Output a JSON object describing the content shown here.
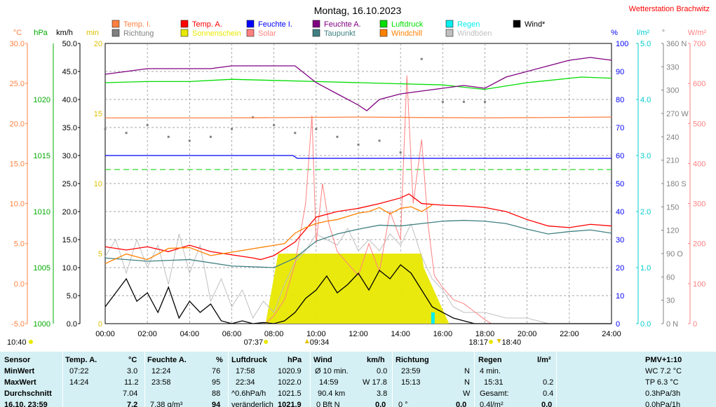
{
  "title": "Montag, 16.10.2023",
  "station": "Wetterstation Brachwitz",
  "legend": [
    {
      "label": "Temp. I.",
      "color": "#ff8040"
    },
    {
      "label": "Temp. A.",
      "color": "#ff0000"
    },
    {
      "label": "Feuchte I.",
      "color": "#0000ff"
    },
    {
      "label": "Feuchte A.",
      "color": "#800080"
    },
    {
      "label": "Luftdruck",
      "color": "#00dd00"
    },
    {
      "label": "Regen",
      "color": "#00eeee"
    },
    {
      "label": "Wind*",
      "color": "#000000"
    },
    {
      "label": "Richtung",
      "color": "#808080"
    },
    {
      "label": "Sonnenschein",
      "color": "#e8e800"
    },
    {
      "label": "Solar",
      "color": "#ff8080"
    },
    {
      "label": "Taupunkt",
      "color": "#408080"
    },
    {
      "label": "Windchill",
      "color": "#ff8000"
    },
    {
      "label": "Windböen",
      "color": "#c0c0c0"
    }
  ],
  "axes": {
    "temp": {
      "unit": "°C",
      "color": "#ff8040",
      "ticks": [
        "30.0",
        "25.0",
        "20.0",
        "15.0",
        "10.0",
        "5.0",
        "0.0",
        "-5.0"
      ]
    },
    "pressure": {
      "unit": "hPa",
      "color": "#00aa00",
      "ticks": [
        "1020",
        "1015",
        "1010",
        "1005",
        "1000"
      ]
    },
    "wind": {
      "unit": "km/h",
      "color": "#000000",
      "ticks": [
        "50.0",
        "45.0",
        "40.0",
        "35.0",
        "30.0",
        "25.0",
        "20.0",
        "15.0",
        "10.0",
        "5.0",
        "0.0"
      ]
    },
    "sun": {
      "unit": "min",
      "color": "#e0c000",
      "ticks": [
        "20",
        "15",
        "10",
        "5",
        "0"
      ]
    },
    "hum": {
      "unit": "%",
      "color": "#0000ff",
      "ticks": [
        "100",
        "90",
        "80",
        "70",
        "60",
        "50",
        "40",
        "30",
        "20",
        "10",
        "0"
      ]
    },
    "rain": {
      "unit": "l/m²",
      "color": "#00cccc",
      "ticks": [
        "5.0",
        "4.0",
        "3.0",
        "2.0",
        "1.0",
        "0.0"
      ]
    },
    "dir": {
      "unit": "°",
      "color": "#808080",
      "ticks": [
        "360 N",
        "330",
        "300",
        "270 W",
        "240",
        "210",
        "180 S",
        "150",
        "120",
        "90 O",
        "60",
        "30",
        "0 N"
      ]
    },
    "solar": {
      "unit": "W/m²",
      "color": "#ff8080",
      "ticks": [
        "700",
        "600",
        "500",
        "400",
        "300",
        "200",
        "100",
        "0"
      ]
    }
  },
  "time_labels": [
    "00:00",
    "02:00",
    "04:00",
    "06:00",
    "08:00",
    "10:00",
    "12:00",
    "14:00",
    "16:00",
    "18:00",
    "20:00",
    "22:00",
    "24:00"
  ],
  "markers": {
    "sunrise": "07:37",
    "sunset": "18:17",
    "moonrise": "09:34",
    "moonset": "18:40",
    "sun_hours": "10:40"
  },
  "table": {
    "sensor": {
      "header": "Sensor",
      "rows": [
        "MinWert",
        "MaxWert",
        "Durchschnitt",
        "16.10. 23:59"
      ]
    },
    "temp": {
      "header": "Temp. A.",
      "unit": "°C",
      "rows": [
        [
          "07:22",
          "3.0"
        ],
        [
          "14:24",
          "11.2"
        ],
        [
          "",
          "7.04"
        ],
        [
          "",
          "7.2"
        ]
      ]
    },
    "hum": {
      "header": "Feuchte A.",
      "unit": "%",
      "rows": [
        [
          "12:24",
          "76"
        ],
        [
          "23:58",
          "95"
        ],
        [
          "",
          "88"
        ],
        [
          "7.38 g/m³",
          "94"
        ]
      ]
    },
    "press": {
      "header": "Luftdruck",
      "unit": "hPa",
      "rows": [
        [
          "17:58",
          "1020.9"
        ],
        [
          "22:34",
          "1022.0"
        ],
        [
          "^0.6hPa/h",
          "1021.5"
        ],
        [
          "veränderlich",
          "1021.9"
        ]
      ]
    },
    "wind": {
      "header": "Wind",
      "unit": "km/h",
      "rows": [
        [
          "Ø 10 min.",
          "0.0"
        ],
        [
          "14:59",
          "W 17.8"
        ],
        [
          "90.4 km",
          "3.8"
        ],
        [
          "0 Bft N",
          "0.0"
        ]
      ]
    },
    "dir": {
      "header": "Richtung",
      "unit": "",
      "rows": [
        [
          "23:59",
          "N"
        ],
        [
          "15:13",
          "N"
        ],
        [
          "",
          "W"
        ],
        [
          "0 °",
          "0.0"
        ]
      ]
    },
    "rain": {
      "header": "Regen",
      "unit": "l/m²",
      "rows": [
        [
          "4 min.",
          ""
        ],
        [
          "15:31",
          "0.2"
        ],
        [
          "Gesamt:",
          "0.4"
        ],
        [
          "0.4l/m²",
          "0.0"
        ]
      ]
    },
    "pmv": {
      "header": "PMV+1:10",
      "rows": [
        "WC 7.2 °C",
        "TP 6.3 °C",
        "0.3hPa/3h",
        "0.0hPa/1h"
      ]
    }
  },
  "chart_data": {
    "type": "line",
    "title": "Montag, 16.10.2023",
    "x_range_hours": [
      0,
      24
    ],
    "series": [
      {
        "name": "Temp. I.",
        "axis": "temp",
        "color": "#ff8040",
        "x": [
          0,
          6,
          12,
          18,
          24
        ],
        "values": [
          20.7,
          20.7,
          20.8,
          20.7,
          20.8
        ]
      },
      {
        "name": "Temp. A.",
        "axis": "temp",
        "color": "#ff0000",
        "x": [
          0,
          1,
          2,
          3,
          4,
          5,
          6,
          7,
          7.37,
          8,
          9,
          10,
          11,
          12,
          13,
          14,
          14.4,
          15,
          16,
          17,
          18,
          19,
          20,
          21,
          22,
          23,
          24
        ],
        "values": [
          4.6,
          4.2,
          4.6,
          4.0,
          4.8,
          4.0,
          3.6,
          3.2,
          3.0,
          3.5,
          5.2,
          8.3,
          9.0,
          9.4,
          10.0,
          10.7,
          11.2,
          10.0,
          9.8,
          9.7,
          9.5,
          9.0,
          8.0,
          7.2,
          7.0,
          7.4,
          7.2
        ]
      },
      {
        "name": "Taupunkt",
        "axis": "temp",
        "color": "#408080",
        "x": [
          0,
          2,
          4,
          6,
          8,
          9,
          10,
          11,
          12,
          13,
          14,
          15,
          16,
          17,
          18,
          19,
          20,
          21,
          22,
          23,
          24
        ],
        "values": [
          3.2,
          2.8,
          3.0,
          2.2,
          2.0,
          3.2,
          5.3,
          6.2,
          6.8,
          7.3,
          7.2,
          7.5,
          7.8,
          7.9,
          7.8,
          7.5,
          6.8,
          6.2,
          6.5,
          6.7,
          6.3
        ]
      },
      {
        "name": "Windchill",
        "axis": "temp",
        "color": "#ff8000",
        "x": [
          0,
          1,
          2,
          3,
          4,
          5,
          8.5,
          9,
          9.5,
          10,
          10.5,
          11,
          11.5,
          12,
          12.5,
          13,
          13.5,
          14,
          14.5,
          15,
          15.5
        ],
        "values": [
          2.5,
          3.7,
          3.0,
          4.4,
          4.5,
          3.5,
          5.0,
          6.3,
          7.0,
          7.5,
          7.8,
          8.0,
          8.4,
          8.8,
          9.0,
          9.5,
          8.7,
          9.4,
          9.6,
          9.0,
          9.8
        ]
      },
      {
        "name": "Feuchte I.",
        "axis": "hum",
        "color": "#0000ff",
        "x": [
          0,
          8.9,
          9.1,
          24
        ],
        "values": [
          60,
          60,
          59,
          59
        ]
      },
      {
        "name": "Feuchte A.",
        "axis": "hum",
        "color": "#800080",
        "x": [
          0,
          1,
          2,
          3,
          4,
          5,
          6,
          7,
          8,
          9,
          9.5,
          10,
          11,
          12,
          12.4,
          13,
          14,
          15,
          16,
          17,
          18,
          19,
          20,
          21,
          22,
          23,
          24
        ],
        "values": [
          89,
          90,
          91,
          91,
          91,
          91,
          92,
          92,
          92,
          92,
          89,
          86,
          82,
          78,
          76,
          80,
          82,
          83,
          84,
          85,
          84,
          88,
          90,
          92,
          94,
          95,
          94
        ]
      },
      {
        "name": "Luftdruck",
        "axis": "pressure",
        "color": "#00dd00",
        "x": [
          0,
          2,
          4,
          6,
          8,
          10,
          12,
          14,
          16,
          17.97,
          20,
          22.57,
          24
        ],
        "values": [
          1021.5,
          1021.6,
          1021.6,
          1021.8,
          1021.7,
          1021.6,
          1021.5,
          1021.4,
          1021.3,
          1020.9,
          1021.5,
          1022.0,
          1021.9
        ]
      },
      {
        "name": "Wind*",
        "axis": "wind",
        "color": "#000000",
        "x": [
          0,
          1,
          1.5,
          2,
          2.5,
          3,
          3.5,
          4,
          4.5,
          5,
          5.5,
          6,
          6.5,
          7,
          7.5,
          8,
          8.5,
          9,
          9.5,
          10,
          10.5,
          11,
          11.5,
          12,
          12.5,
          13,
          13.5,
          14,
          14.5,
          15,
          15.5,
          16,
          16.5,
          17,
          17.5,
          18,
          24
        ],
        "values": [
          3.0,
          8.0,
          4.0,
          5.5,
          2.0,
          6.5,
          1.0,
          4.0,
          2.0,
          3.5,
          0.5,
          0.0,
          0.5,
          0.0,
          0.2,
          0.0,
          0.5,
          2.0,
          4.5,
          6.0,
          8.5,
          5.5,
          7.0,
          9.0,
          6.0,
          9.5,
          8.0,
          10.5,
          9.0,
          6.0,
          3.0,
          2.0,
          1.0,
          0.5,
          0.0,
          0.0,
          0.0
        ]
      },
      {
        "name": "Windböen",
        "axis": "wind",
        "color": "#c0c0c0",
        "x": [
          0,
          0.5,
          1,
          1.5,
          2,
          2.5,
          3,
          3.5,
          4,
          4.5,
          5,
          5.5,
          6,
          6.5,
          7,
          7.5,
          8,
          8.5,
          9,
          9.5,
          10,
          10.5,
          11,
          11.5,
          12,
          12.5,
          13,
          13.5,
          14,
          14.5,
          15,
          15.5,
          16,
          16.5,
          17,
          18,
          19,
          20,
          21,
          24
        ],
        "values": [
          12,
          15,
          9,
          15,
          10,
          14,
          7,
          16,
          9,
          14,
          4,
          8,
          3,
          6,
          1,
          4,
          2,
          7,
          11,
          13,
          16,
          15,
          14,
          17,
          13,
          15,
          13,
          16,
          14,
          17.8,
          12,
          8,
          6,
          3,
          2,
          2,
          1,
          1,
          0,
          0
        ]
      },
      {
        "name": "Solar",
        "axis": "solar",
        "color": "#ff8080",
        "x": [
          7.6,
          8,
          8.5,
          9,
          9.5,
          9.8,
          10,
          10.3,
          10.6,
          11,
          11.5,
          12,
          12.5,
          13,
          13.5,
          14,
          14.3,
          14.6,
          15,
          15.3,
          15.6,
          16,
          16.5,
          17,
          17.5,
          18,
          18.3
        ],
        "values": [
          0,
          20,
          60,
          150,
          300,
          520,
          200,
          350,
          250,
          180,
          150,
          120,
          200,
          130,
          280,
          210,
          620,
          300,
          460,
          250,
          120,
          90,
          60,
          50,
          30,
          10,
          0
        ]
      },
      {
        "name": "Sonnenschein",
        "axis": "sun",
        "color": "#e8e800",
        "x": [
          7.6,
          8.2,
          8.3,
          15.0,
          15.1,
          16.3
        ],
        "values": [
          0,
          5,
          5,
          5,
          4,
          0
        ]
      },
      {
        "name": "Regen",
        "axis": "rain",
        "color": "#00eeee",
        "x": [
          15.2,
          15.52,
          15.6
        ],
        "values": [
          0,
          0.2,
          0
        ]
      },
      {
        "name": "Richtung",
        "axis": "dir",
        "color": "#808080",
        "x": [
          0,
          1,
          2,
          3,
          4,
          5,
          6,
          7,
          8,
          9,
          10,
          11,
          12,
          13,
          14,
          15,
          16,
          17,
          18,
          19,
          20,
          21,
          22,
          23,
          24
        ],
        "values": [
          250,
          245,
          255,
          240,
          235,
          240,
          250,
          265,
          255,
          245,
          250,
          240,
          230,
          235,
          220,
          340,
          285,
          285,
          285,
          0,
          0,
          0,
          0,
          0,
          0
        ]
      }
    ]
  }
}
